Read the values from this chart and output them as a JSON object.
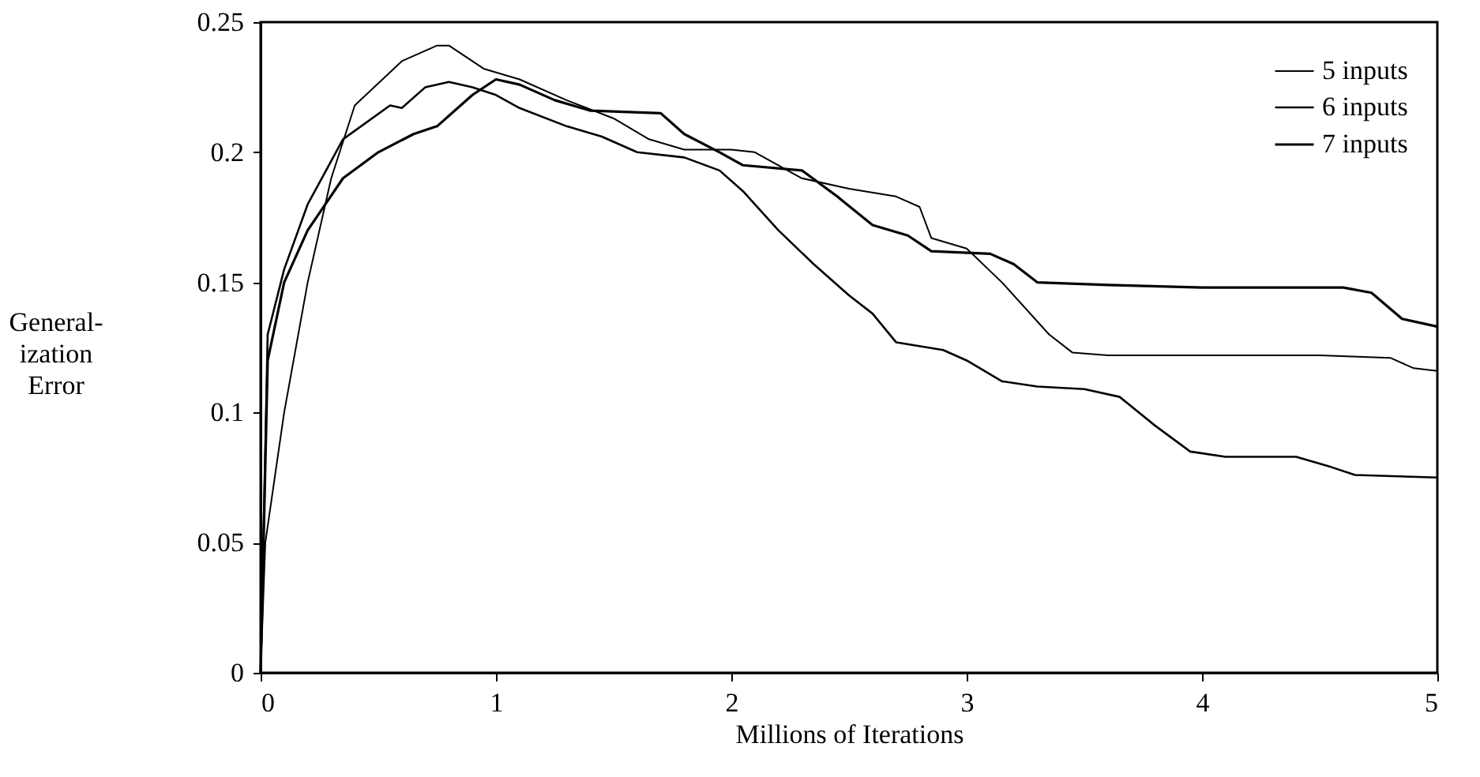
{
  "chart_data": {
    "type": "line",
    "xlabel": "Millions of Iterations",
    "ylabel": "General-\nization\nError",
    "xlim": [
      0,
      5
    ],
    "ylim": [
      0,
      0.25
    ],
    "xticks": [
      0,
      1,
      2,
      3,
      4,
      5
    ],
    "yticks": [
      0,
      0.05,
      0.1,
      0.15,
      0.2,
      0.25
    ],
    "grid": false,
    "legend": "top right",
    "marker": "none",
    "line_style": "solid",
    "series": [
      {
        "name": "5 inputs",
        "color": "#000000",
        "x": [
          0,
          0.02,
          0.1,
          0.2,
          0.3,
          0.4,
          0.6,
          0.75,
          0.8,
          0.95,
          1.1,
          1.3,
          1.5,
          1.65,
          1.8,
          2.0,
          2.1,
          2.3,
          2.5,
          2.7,
          2.8,
          2.85,
          3.0,
          3.15,
          3.35,
          3.45,
          3.6,
          4.0,
          4.5,
          4.8,
          4.9,
          5.0
        ],
        "values": [
          0,
          0.05,
          0.1,
          0.15,
          0.19,
          0.218,
          0.235,
          0.241,
          0.241,
          0.232,
          0.228,
          0.22,
          0.213,
          0.205,
          0.201,
          0.201,
          0.2,
          0.19,
          0.186,
          0.183,
          0.179,
          0.167,
          0.163,
          0.15,
          0.13,
          0.123,
          0.122,
          0.122,
          0.122,
          0.121,
          0.117,
          0.116
        ]
      },
      {
        "name": "6 inputs",
        "color": "#000000",
        "x": [
          0,
          0.03,
          0.1,
          0.2,
          0.35,
          0.55,
          0.6,
          0.7,
          0.8,
          0.9,
          1.0,
          1.1,
          1.3,
          1.45,
          1.6,
          1.8,
          1.95,
          2.05,
          2.2,
          2.35,
          2.5,
          2.6,
          2.7,
          2.9,
          3.0,
          3.15,
          3.3,
          3.5,
          3.65,
          3.8,
          3.95,
          4.1,
          4.4,
          4.55,
          4.65,
          5.0
        ],
        "values": [
          0,
          0.13,
          0.155,
          0.18,
          0.205,
          0.218,
          0.217,
          0.225,
          0.227,
          0.225,
          0.222,
          0.217,
          0.21,
          0.206,
          0.2,
          0.198,
          0.193,
          0.185,
          0.17,
          0.157,
          0.145,
          0.138,
          0.127,
          0.124,
          0.12,
          0.112,
          0.11,
          0.109,
          0.106,
          0.095,
          0.085,
          0.083,
          0.083,
          0.079,
          0.076,
          0.075
        ]
      },
      {
        "name": "7 inputs",
        "color": "#000000",
        "x": [
          0,
          0.03,
          0.1,
          0.2,
          0.35,
          0.5,
          0.65,
          0.75,
          0.9,
          1.0,
          1.1,
          1.25,
          1.4,
          1.7,
          1.8,
          1.95,
          2.05,
          2.3,
          2.45,
          2.6,
          2.75,
          2.85,
          3.1,
          3.2,
          3.3,
          3.6,
          4.0,
          4.6,
          4.72,
          4.85,
          5.0
        ],
        "values": [
          0,
          0.12,
          0.15,
          0.17,
          0.19,
          0.2,
          0.207,
          0.21,
          0.222,
          0.228,
          0.226,
          0.22,
          0.216,
          0.215,
          0.207,
          0.2,
          0.195,
          0.193,
          0.183,
          0.172,
          0.168,
          0.162,
          0.161,
          0.157,
          0.15,
          0.149,
          0.148,
          0.148,
          0.146,
          0.136,
          0.133
        ]
      }
    ]
  }
}
